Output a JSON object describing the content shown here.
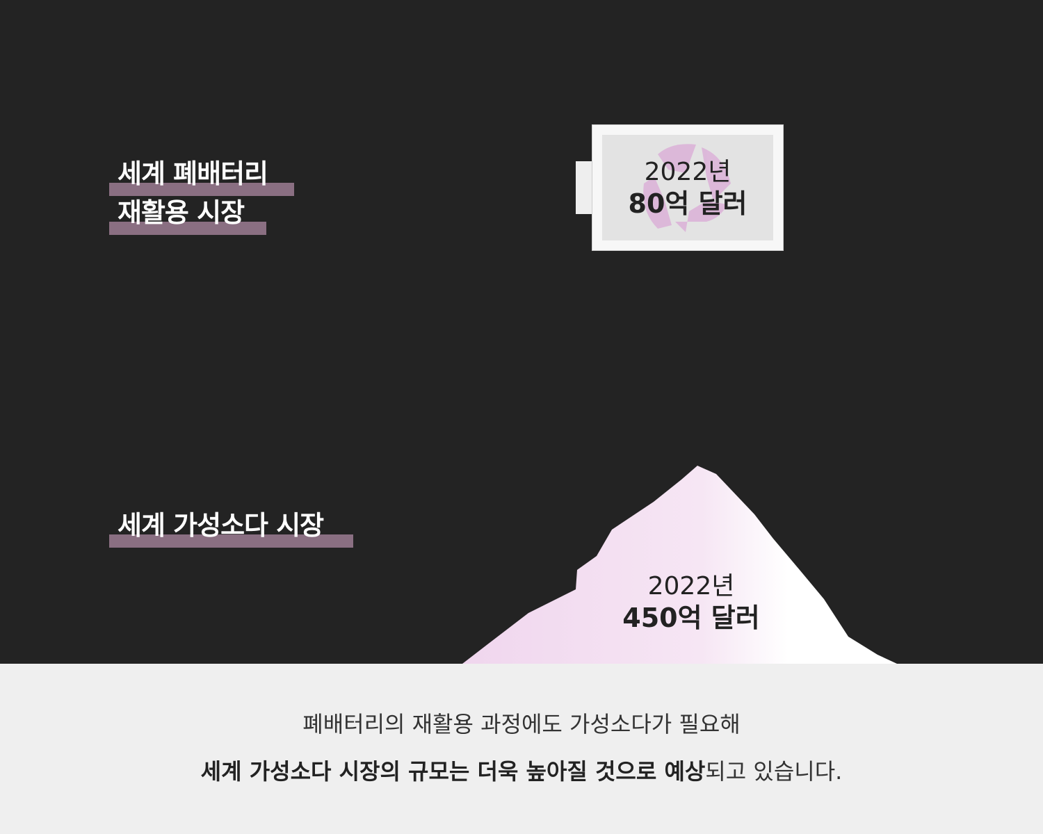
{
  "sections": [
    {
      "title_lines": [
        "세계 폐배터리",
        "재활용 시장"
      ],
      "year": "2022년",
      "amount": "80억 달러",
      "icon": "battery-with-recycle-icon"
    },
    {
      "title_lines": [
        "세계 가성소다 시장"
      ],
      "year": "2022년",
      "amount": "450억 달러",
      "icon": "mountain-shape"
    }
  ],
  "footer": {
    "line1": "폐배터리의 재활용 과정에도 가성소다가 필요해",
    "line2_bold": "세계 가성소다 시장의 규모는 더욱 높아질 것으로 예상",
    "line2_rest": "되고 있습니다."
  },
  "colors": {
    "background": "#232323",
    "highlight": "#8a6f82",
    "accent_pink": "#dcb4d8",
    "footer_bg": "#efefef"
  }
}
